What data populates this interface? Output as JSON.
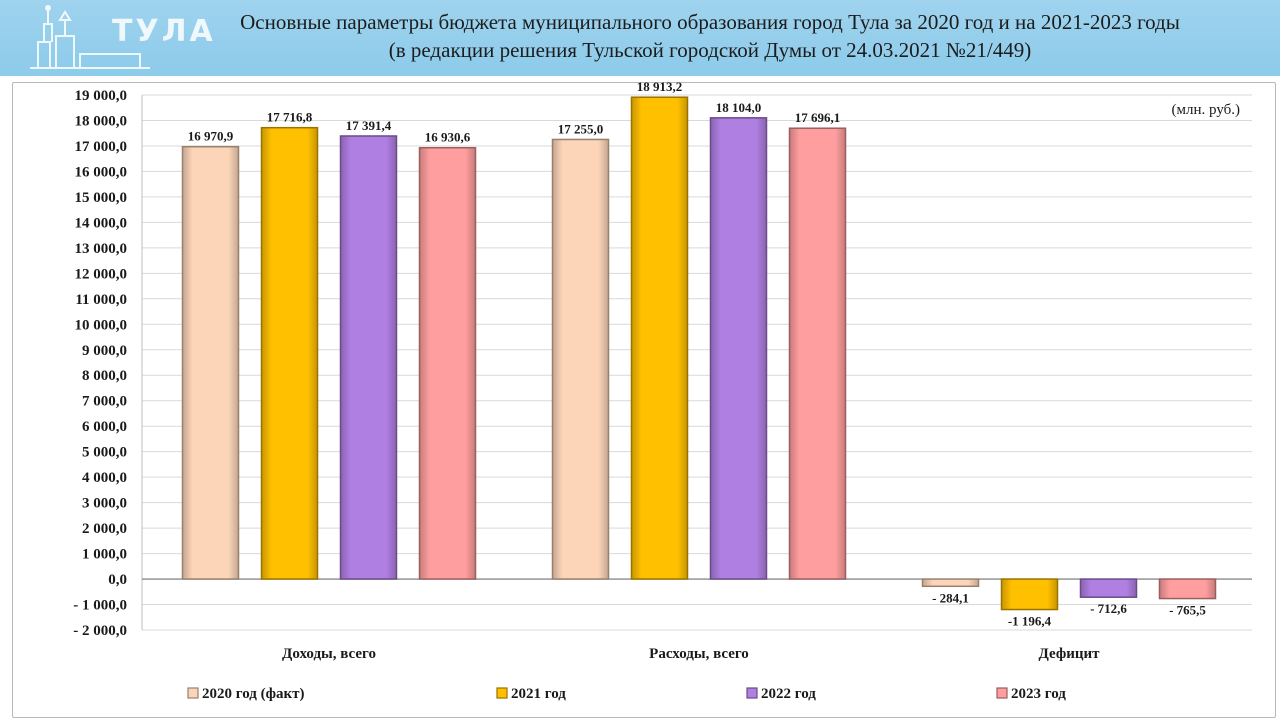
{
  "header": {
    "logo_text": "ТУЛА",
    "title_line1": "Основные параметры бюджета муниципального образования город Тула за 2020 год и на 2021-2023 годы",
    "title_line2": "(в редакции решения Тульской городской Думы от 24.03.2021 №21/449)"
  },
  "chart_data": {
    "type": "bar",
    "title": "Основные параметры бюджета муниципального образования город Тула за 2020 год и на 2021-2023 годы",
    "subtitle": "(в редакции решения Тульской городской Думы от 24.03.2021 №21/449)",
    "unit_label": "(млн. руб.)",
    "categories": [
      "Доходы, всего",
      "Расходы, всего",
      "Дефицит"
    ],
    "series": [
      {
        "name": "2020 год (факт)",
        "color": "#fcd5b8",
        "values": [
          16970.9,
          17255.0,
          -284.1
        ],
        "labels": [
          "16 970,9",
          "17 255,0",
          "- 284,1"
        ]
      },
      {
        "name": "2021 год",
        "color": "#ffc000",
        "values": [
          17716.8,
          18913.2,
          -1196.4
        ],
        "labels": [
          "17 716,8",
          "18 913,2",
          "-1 196,4"
        ]
      },
      {
        "name": "2022 год",
        "color": "#b07fe2",
        "values": [
          17391.4,
          18104.0,
          -712.6
        ],
        "labels": [
          "17 391,4",
          "18 104,0",
          "- 712,6"
        ]
      },
      {
        "name": "2023 год",
        "color": "#ff9e9e",
        "values": [
          16930.6,
          17696.1,
          -765.5
        ],
        "labels": [
          "16 930,6",
          "17 696,1",
          "- 765,5"
        ]
      }
    ],
    "ylim": [
      -2000,
      19000
    ],
    "ytick_step": 1000,
    "ytick_labels": [
      "19 000,0",
      "18 000,0",
      "17 000,0",
      "16 000,0",
      "15 000,0",
      "14 000,0",
      "13 000,0",
      "12 000,0",
      "11 000,0",
      "10 000,0",
      "9 000,0",
      "8 000,0",
      "7 000,0",
      "6 000,0",
      "5 000,0",
      "4 000,0",
      "3 000,0",
      "2 000,0",
      "1 000,0",
      "0,0",
      "- 1 000,0",
      "- 2 000,0"
    ],
    "grid": true,
    "legend_position": "bottom"
  }
}
